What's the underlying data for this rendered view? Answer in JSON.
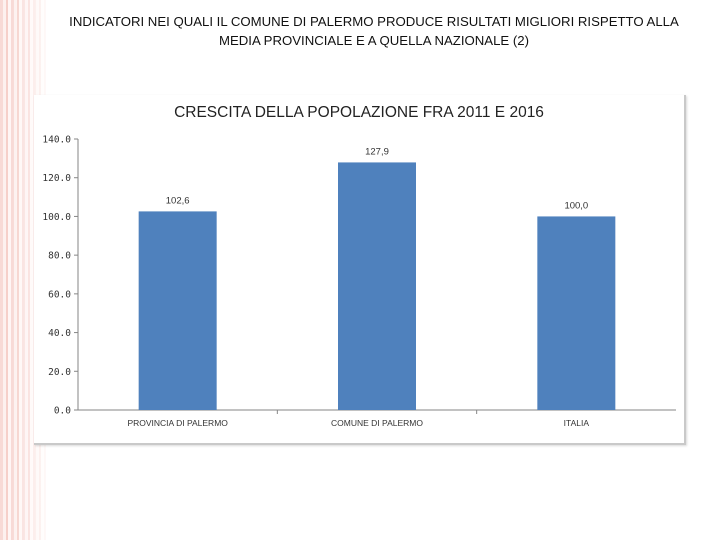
{
  "slide": {
    "title_line1": "INDICATORI NEI QUALI IL COMUNE DI PALERMO PRODUCE RISULTATI MIGLIORI RISPETTO ALLA",
    "title_line2": "MEDIA PROVINCIALE E A QUELLA NAZIONALE (2)"
  },
  "colors": {
    "bar": "#4f81bd",
    "axis": "#868686",
    "text": "#333333"
  },
  "chart_data": {
    "type": "bar",
    "title": "CRESCITA DELLA POPOLAZIONE FRA 2011 E 2016",
    "categories": [
      "PROVINCIA DI PALERMO",
      "COMUNE DI PALERMO",
      "ITALIA"
    ],
    "values": [
      102.6,
      127.9,
      100.0
    ],
    "value_labels": [
      "102,6",
      "127,9",
      "100,0"
    ],
    "ylim": [
      0,
      140
    ],
    "yticks": [
      0,
      20,
      40,
      60,
      80,
      100,
      120,
      140
    ],
    "ytick_labels": [
      "0.0",
      "20.0",
      "40.0",
      "60.0",
      "80.0",
      "100.0",
      "120.0",
      "140.0"
    ],
    "xlabel": "",
    "ylabel": "",
    "grid": false,
    "legend": "none"
  }
}
